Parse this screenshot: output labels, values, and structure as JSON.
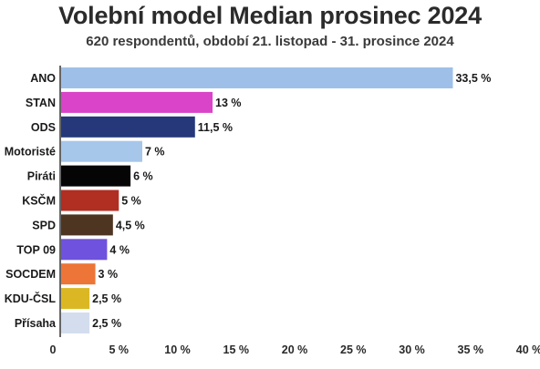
{
  "chart_data": {
    "type": "bar",
    "orientation": "horizontal",
    "title": "Volební model Median prosinec 2024",
    "subtitle": "620 respondentů, období 21. listopad - 31. prosince 2024",
    "categories": [
      "ANO",
      "STAN",
      "ODS",
      "Motoristé",
      "Piráti",
      "KSČM",
      "SPD",
      "TOP 09",
      "SOCDEM",
      "KDU-ČSL",
      "Přísaha"
    ],
    "values": [
      33.5,
      13,
      11.5,
      7,
      6,
      5,
      4.5,
      4,
      3,
      2.5,
      2.5
    ],
    "value_labels": [
      "33,5 %",
      "13 %",
      "11,5 %",
      "7 %",
      "6 %",
      "5 %",
      "4,5 %",
      "4 %",
      "3 %",
      "2,5 %",
      "2,5 %"
    ],
    "colors": [
      "#9ec0e8",
      "#d944c9",
      "#26387a",
      "#a6c6ea",
      "#050505",
      "#b02e22",
      "#4e3521",
      "#6f52dd",
      "#ed7538",
      "#dbb823",
      "#d3ddee"
    ],
    "xlim": [
      0,
      40
    ],
    "ticks": [
      0,
      5,
      10,
      15,
      20,
      25,
      30,
      35,
      40
    ],
    "tick_labels": [
      "0",
      "5 %",
      "10 %",
      "15 %",
      "20 %",
      "25 %",
      "30 %",
      "35 %",
      "40 %"
    ],
    "xlabel": "",
    "ylabel": "",
    "grid": false,
    "legend": "none"
  }
}
